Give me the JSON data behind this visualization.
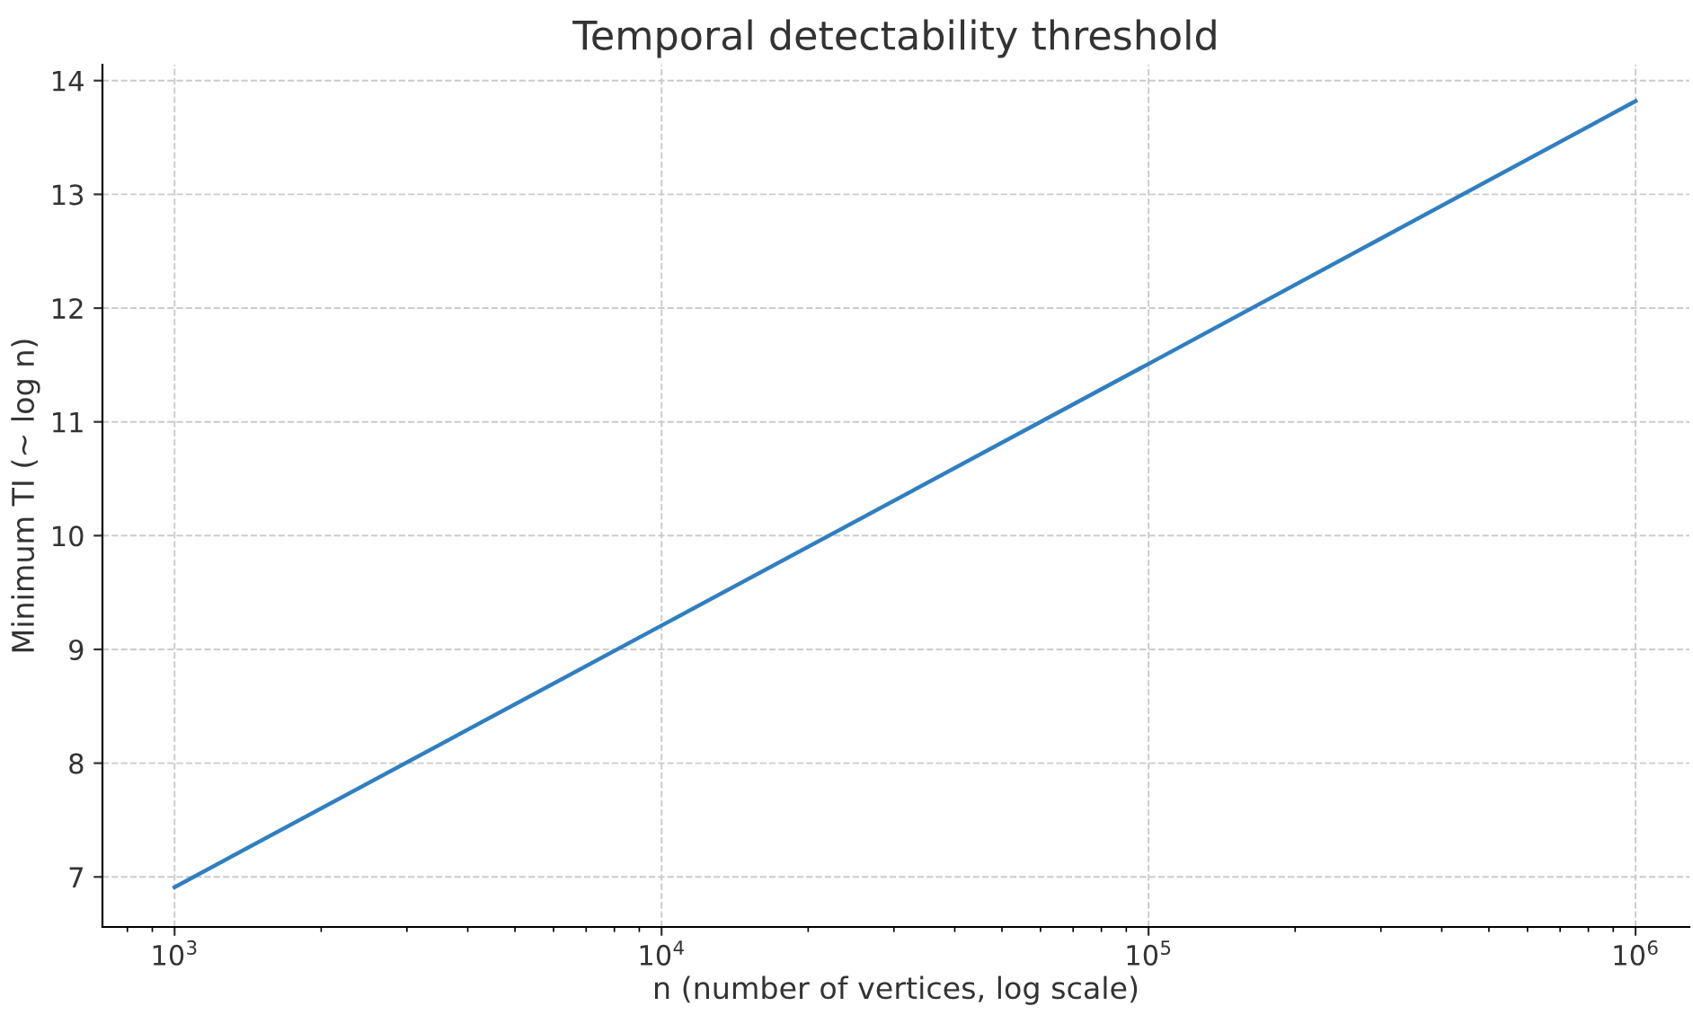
{
  "chart_data": {
    "type": "line",
    "title": "Temporal detectability threshold",
    "xlabel": "n (number of vertices, log scale)",
    "ylabel": "Minimum TI (~ log n)",
    "x": [
      1000,
      10000,
      100000,
      1000000
    ],
    "series": [
      {
        "color": "#2f7fc1",
        "values": [
          6.91,
          9.21,
          11.51,
          13.82
        ]
      }
    ],
    "log": "x",
    "xlim": [
      711,
      1290000
    ],
    "ylim": [
      6.56,
      14.14
    ],
    "xticks": [
      {
        "value": 1000,
        "label": "10$^{3}$"
      },
      {
        "value": 10000,
        "label": "10$^{4}$"
      },
      {
        "value": 100000,
        "label": "10$^{5}$"
      },
      {
        "value": 1000000,
        "label": "10$^{6}$"
      }
    ],
    "yticks": [
      7,
      8,
      9,
      10,
      11,
      12,
      13,
      14
    ],
    "grid": true,
    "line_style": "solid"
  }
}
